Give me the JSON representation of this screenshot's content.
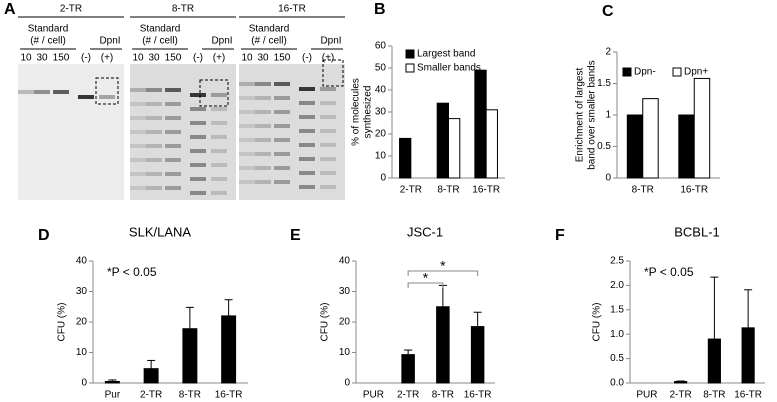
{
  "gel": {
    "panel": "A",
    "gels": [
      {
        "title": "2-TR",
        "standard": [
          "Standard",
          "(# / cell)"
        ],
        "enzyme": "DpnI",
        "lanes": [
          "10",
          "30",
          "150",
          "(-)",
          "(+)"
        ]
      },
      {
        "title": "8-TR",
        "standard": [
          "Standard",
          "(# / cell)"
        ],
        "enzyme": "DpnI",
        "lanes": [
          "10",
          "30",
          "150",
          "(-)",
          "(+)"
        ]
      },
      {
        "title": "16-TR",
        "standard": [
          "Standard",
          "(# / cell)"
        ],
        "enzyme": "DpnI",
        "lanes": [
          "10",
          "30",
          "150",
          "(-)",
          "(+)"
        ]
      }
    ]
  },
  "chart_data": [
    {
      "type": "bar",
      "panel": "B",
      "ylabel": [
        "% of molecules",
        "synthesized"
      ],
      "categories": [
        "2-TR",
        "8-TR",
        "16-TR"
      ],
      "series": [
        {
          "name": "Largest band",
          "color": "#000000",
          "values": [
            18,
            34,
            49
          ]
        },
        {
          "name": "Smaller bands",
          "color": "#ffffff",
          "values": [
            null,
            27,
            31
          ]
        }
      ],
      "ylim": [
        0,
        60
      ],
      "yticks": [
        0,
        10,
        20,
        30,
        40,
        50,
        60
      ],
      "legend": "top-left"
    },
    {
      "type": "bar",
      "panel": "C",
      "ylabel": [
        "Enrichment of largest",
        "band over smaller bands"
      ],
      "categories": [
        "8-TR",
        "16-TR"
      ],
      "series": [
        {
          "name": "Dpn-",
          "color": "#000000",
          "values": [
            1,
            1
          ]
        },
        {
          "name": "Dpn+",
          "color": "#ffffff",
          "values": [
            1.26,
            1.58
          ]
        }
      ],
      "ylim": [
        0,
        2
      ],
      "yticks": [
        0,
        0.5,
        1,
        1.5,
        2
      ],
      "legend": "top"
    },
    {
      "type": "bar",
      "panel": "D",
      "title": "SLK/LANA",
      "ylabel": [
        "CFU (%)"
      ],
      "annotation": "*P < 0.05",
      "categories": [
        "Pur",
        "2-TR",
        "8-TR",
        "16-TR"
      ],
      "series": [
        {
          "color": "#000000",
          "values": [
            0.5,
            4.7,
            17.8,
            22
          ],
          "errors": [
            0.5,
            2.7,
            7,
            5.3
          ]
        }
      ],
      "ylim": [
        0,
        40
      ],
      "yticks": [
        0,
        10,
        20,
        30,
        40
      ]
    },
    {
      "type": "bar",
      "panel": "E",
      "title": "JSC-1",
      "ylabel": [
        "CFU (%)"
      ],
      "categories": [
        "PUR",
        "2-TR",
        "8-TR",
        "16-TR"
      ],
      "series": [
        {
          "color": "#000000",
          "values": [
            null,
            9.3,
            25,
            18.5
          ],
          "errors": [
            null,
            1.5,
            7,
            4.7
          ]
        }
      ],
      "significance": [
        {
          "from": 1,
          "to": 2,
          "label": "*"
        },
        {
          "from": 1,
          "to": 3,
          "label": "*"
        }
      ],
      "ylim": [
        0,
        40
      ],
      "yticks": [
        0,
        10,
        20,
        30,
        40
      ]
    },
    {
      "type": "bar",
      "panel": "F",
      "title": "BCBL-1",
      "ylabel": [
        "CFU (%)"
      ],
      "annotation": "*P < 0.05",
      "categories": [
        "PUR",
        "2-TR",
        "8-TR",
        "16-TR"
      ],
      "series": [
        {
          "color": "#000000",
          "values": [
            null,
            0.03,
            0.9,
            1.13
          ],
          "errors": [
            null,
            0.01,
            1.27,
            0.78
          ]
        }
      ],
      "ylim": [
        0,
        2.5
      ],
      "yticks": [
        {
          "value": 0,
          "label": "0.0"
        },
        {
          "value": 0.5,
          "label": "0.5"
        },
        {
          "value": 1,
          "label": "1.0"
        },
        {
          "value": 1.5,
          "label": "1.5"
        },
        {
          "value": 2,
          "label": "2.0"
        },
        {
          "value": 2.5,
          "label": "2.5"
        }
      ]
    }
  ]
}
